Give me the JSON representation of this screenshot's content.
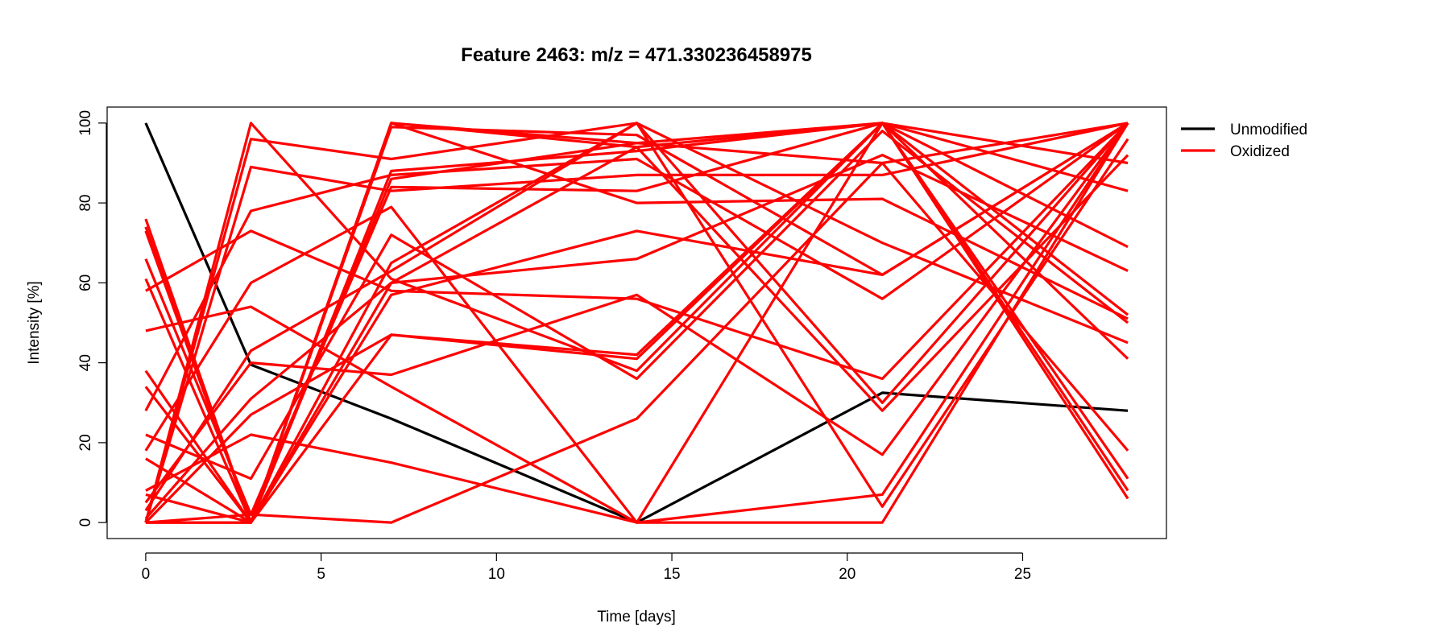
{
  "chart_data": {
    "type": "line",
    "title": "Feature 2463: m/z = 471.330236458975",
    "xlabel": "Time [days]",
    "ylabel": "Intensity [%]",
    "xlim": [
      -1.1,
      29.1
    ],
    "ylim": [
      -4,
      104
    ],
    "x_ticks": [
      0,
      5,
      10,
      15,
      20,
      25
    ],
    "y_ticks": [
      0,
      20,
      40,
      60,
      80,
      100
    ],
    "grid": false,
    "legend_position": "top-right outside",
    "x": [
      0,
      3,
      7,
      14,
      21,
      28
    ],
    "colors": {
      "Unmodified": "#000000",
      "Oxidized": "#ff0000"
    },
    "legend": [
      {
        "label": "Unmodified",
        "color": "#000000"
      },
      {
        "label": "Oxidized",
        "color": "#ff0000"
      }
    ],
    "series": [
      {
        "group": "Unmodified",
        "values": [
          100,
          39.5,
          26,
          0,
          32.5,
          28
        ]
      },
      {
        "group": "Oxidized",
        "values": [
          0,
          100,
          61,
          38,
          100,
          90
        ]
      },
      {
        "group": "Oxidized",
        "values": [
          0,
          96,
          91,
          100,
          30,
          100
        ]
      },
      {
        "group": "Oxidized",
        "values": [
          0,
          89,
          83,
          87,
          87,
          100
        ]
      },
      {
        "group": "Oxidized",
        "values": [
          74,
          0,
          100,
          95,
          100,
          6
        ]
      },
      {
        "group": "Oxidized",
        "values": [
          76,
          0,
          100,
          94,
          100,
          8
        ]
      },
      {
        "group": "Oxidized",
        "values": [
          73,
          0,
          88,
          93,
          100,
          11
        ]
      },
      {
        "group": "Oxidized",
        "values": [
          66,
          2,
          0,
          26,
          90,
          100
        ]
      },
      {
        "group": "Oxidized",
        "values": [
          61,
          0,
          100,
          80,
          81,
          51
        ]
      },
      {
        "group": "Oxidized",
        "values": [
          58,
          73,
          58,
          56,
          36,
          100
        ]
      },
      {
        "group": "Oxidized",
        "values": [
          48,
          54,
          34,
          0,
          0,
          100
        ]
      },
      {
        "group": "Oxidized",
        "values": [
          38,
          0,
          86,
          95,
          90,
          18
        ]
      },
      {
        "group": "Oxidized",
        "values": [
          34,
          0,
          99,
          97,
          62,
          100
        ]
      },
      {
        "group": "Oxidized",
        "values": [
          28,
          78,
          87,
          91,
          56,
          100
        ]
      },
      {
        "group": "Oxidized",
        "values": [
          22,
          11,
          72,
          36,
          98,
          50
        ]
      },
      {
        "group": "Oxidized",
        "values": [
          18,
          60,
          79,
          0,
          100,
          41
        ]
      },
      {
        "group": "Oxidized",
        "values": [
          16,
          0,
          47,
          41,
          100,
          83
        ]
      },
      {
        "group": "Oxidized",
        "values": [
          8,
          22,
          15,
          0,
          7,
          100
        ]
      },
      {
        "group": "Oxidized",
        "values": [
          7,
          0,
          65,
          100,
          70,
          45
        ]
      },
      {
        "group": "Oxidized",
        "values": [
          5,
          40,
          37,
          57,
          17,
          100
        ]
      },
      {
        "group": "Oxidized",
        "values": [
          3,
          43,
          63,
          100,
          4,
          96
        ]
      },
      {
        "group": "Oxidized",
        "values": [
          1,
          31,
          60,
          66,
          92,
          63
        ]
      },
      {
        "group": "Oxidized",
        "values": [
          0,
          27,
          47,
          42,
          100,
          69
        ]
      },
      {
        "group": "Oxidized",
        "values": [
          0,
          0,
          57,
          73,
          62,
          100
        ]
      },
      {
        "group": "Oxidized",
        "values": [
          0,
          0,
          60,
          94,
          28,
          92
        ]
      },
      {
        "group": "Oxidized",
        "values": [
          0,
          2,
          84,
          83,
          100,
          52
        ]
      }
    ]
  }
}
